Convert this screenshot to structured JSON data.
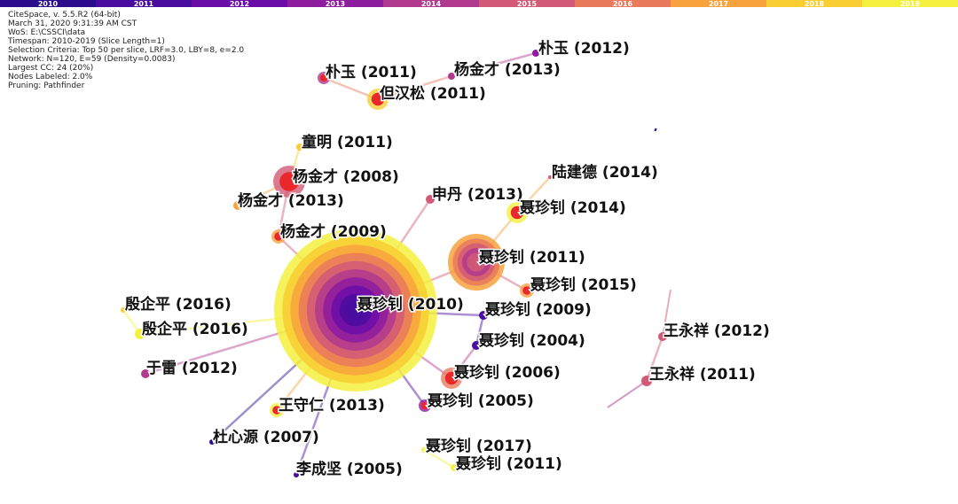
{
  "timeline": {
    "years": [
      "2010",
      "2011",
      "2012",
      "2013",
      "2014",
      "2015",
      "2016",
      "2017",
      "2018",
      "2019"
    ]
  },
  "info": [
    "CiteSpace, v. 5.5.R2 (64-bit)",
    "March 31, 2020 9:31:39 AM CST",
    "WoS: E:\\CSSCI\\data",
    "Timespan: 2010-2019 (Slice Length=1)",
    "Selection Criteria: Top 50 per slice, LRF=3.0, LBY=8, e=2.0",
    "Network: N=120, E=59 (Density=0.0083)",
    "Largest CC: 24 (20%)",
    "Nodes Labeled: 2.0%",
    "Pruning: Pathfinder"
  ],
  "nodes": [
    {
      "label": "朴玉 (2012)"
    },
    {
      "label": "杨金才 (2013)"
    },
    {
      "label": "朴玉 (2011)"
    },
    {
      "label": "但汉松 (2011)"
    },
    {
      "label": "童明 (2011)"
    },
    {
      "label": "杨金才 (2008)"
    },
    {
      "label": "杨金才 (2013)"
    },
    {
      "label": "杨金才 (2009)"
    },
    {
      "label": "申丹 (2013)"
    },
    {
      "label": "陆建德 (2014)"
    },
    {
      "label": "聂珍钊 (2014)"
    },
    {
      "label": "聂珍钊 (2011)"
    },
    {
      "label": "聂珍钊 (2015)"
    },
    {
      "label": "聂珍钊 (2010)"
    },
    {
      "label": "聂珍钊 (2009)"
    },
    {
      "label": "殷企平 (2016)"
    },
    {
      "label": "殷企平 (2016)"
    },
    {
      "label": "聂珍钊 (2004)"
    },
    {
      "label": "王永祥 (2012)"
    },
    {
      "label": "于雷 (2012)"
    },
    {
      "label": "聂珍钊 (2006)"
    },
    {
      "label": "王永祥 (2011)"
    },
    {
      "label": "王守仁 (2013)"
    },
    {
      "label": "聂珍钊 (2005)"
    },
    {
      "label": "杜心源 (2007)"
    },
    {
      "label": "聂珍钊 (2017)"
    },
    {
      "label": "聂珍钊 (2011)"
    },
    {
      "label": "李成坚 (2005)"
    }
  ]
}
